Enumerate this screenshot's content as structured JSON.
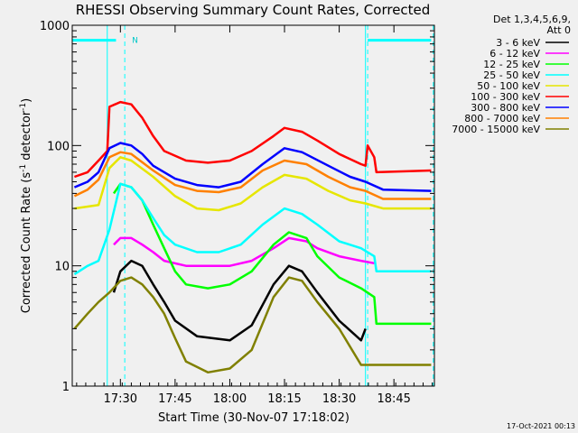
{
  "chart_data": {
    "type": "line",
    "title": "RHESSI Observing Summary Count Rates, Corrected",
    "xlabel": "Start Time (30-Nov-07 17:18:02)",
    "ylabel_main": "Corrected Count Rate (s",
    "ylabel_sup1": "-1",
    "ylabel_mid": " detector",
    "ylabel_sup2": "-1",
    "ylabel_end": ")",
    "yscale": "log",
    "ylim": [
      1,
      1000
    ],
    "xlim": [
      17.28,
      18.935
    ],
    "x_ticks": [
      {
        "x": 17.5,
        "label": "17:30"
      },
      {
        "x": 17.75,
        "label": "17:45"
      },
      {
        "x": 18.0,
        "label": "18:00"
      },
      {
        "x": 18.25,
        "label": "18:15"
      },
      {
        "x": 18.5,
        "label": "18:30"
      },
      {
        "x": 18.75,
        "label": "18:45"
      }
    ],
    "y_ticks": [
      {
        "y": 1,
        "label": "1"
      },
      {
        "y": 10,
        "label": "10"
      },
      {
        "y": 100,
        "label": "100"
      },
      {
        "y": 1000,
        "label": "1000"
      }
    ],
    "legend_header": [
      "Det 1,3,4,5,6,9,",
      "Att 0"
    ],
    "legend_position": "top-right",
    "footer_date": "17-Oct-2021 00:13",
    "annotations": [
      {
        "label": "N",
        "x": 17.52
      }
    ],
    "vertical_lines": [
      {
        "x": 17.28,
        "style": "solid",
        "color": "#00ffff"
      },
      {
        "x": 17.44,
        "style": "solid",
        "color": "#00ffff"
      },
      {
        "x": 17.52,
        "style": "dashed",
        "color": "#00ffff"
      },
      {
        "x": 18.62,
        "style": "solid",
        "color": "#00ffff"
      },
      {
        "x": 18.63,
        "style": "dashed",
        "color": "#00ffff"
      },
      {
        "x": 18.93,
        "style": "dashed",
        "color": "#00ffff"
      }
    ],
    "night_bars": [
      {
        "x0": 17.28,
        "x1": 17.48,
        "y": 750
      },
      {
        "x0": 18.63,
        "x1": 18.92,
        "y": 750
      }
    ],
    "series": [
      {
        "name": "3 - 6 keV",
        "color": "#000000",
        "points": [
          [
            17.47,
            6
          ],
          [
            17.5,
            9
          ],
          [
            17.55,
            11
          ],
          [
            17.6,
            10
          ],
          [
            17.65,
            7
          ],
          [
            17.7,
            5
          ],
          [
            17.75,
            3.5
          ],
          [
            17.85,
            2.6
          ],
          [
            18.0,
            2.4
          ],
          [
            18.1,
            3.2
          ],
          [
            18.2,
            7
          ],
          [
            18.27,
            10
          ],
          [
            18.33,
            9
          ],
          [
            18.4,
            6
          ],
          [
            18.5,
            3.5
          ],
          [
            18.6,
            2.4
          ],
          [
            18.62,
            3
          ]
        ]
      },
      {
        "name": "6 - 12 keV",
        "color": "#ff00ff",
        "points": [
          [
            17.47,
            15
          ],
          [
            17.5,
            17
          ],
          [
            17.55,
            17
          ],
          [
            17.6,
            15
          ],
          [
            17.65,
            13
          ],
          [
            17.7,
            11
          ],
          [
            17.8,
            10
          ],
          [
            17.9,
            10
          ],
          [
            18.0,
            10
          ],
          [
            18.1,
            11
          ],
          [
            18.2,
            14
          ],
          [
            18.27,
            17
          ],
          [
            18.35,
            16
          ],
          [
            18.4,
            14
          ],
          [
            18.5,
            12
          ],
          [
            18.6,
            11
          ],
          [
            18.66,
            10.5
          ]
        ]
      },
      {
        "name": "12 - 25 keV",
        "color": "#00ff00",
        "points": [
          [
            17.47,
            40
          ],
          [
            17.5,
            48
          ],
          [
            17.55,
            45
          ],
          [
            17.6,
            35
          ],
          [
            17.65,
            22
          ],
          [
            17.7,
            14
          ],
          [
            17.75,
            9
          ],
          [
            17.8,
            7
          ],
          [
            17.9,
            6.5
          ],
          [
            18.0,
            7
          ],
          [
            18.1,
            9
          ],
          [
            18.2,
            15
          ],
          [
            18.27,
            19
          ],
          [
            18.35,
            17
          ],
          [
            18.4,
            12
          ],
          [
            18.5,
            8
          ],
          [
            18.6,
            6.5
          ],
          [
            18.66,
            5.5
          ],
          [
            18.67,
            3.3
          ],
          [
            18.92,
            3.3
          ]
        ]
      },
      {
        "name": "25 - 50 keV",
        "color": "#00ffff",
        "points": [
          [
            17.29,
            8.5
          ],
          [
            17.35,
            10
          ],
          [
            17.4,
            11
          ],
          [
            17.45,
            20
          ],
          [
            17.5,
            48
          ],
          [
            17.55,
            45
          ],
          [
            17.6,
            35
          ],
          [
            17.65,
            25
          ],
          [
            17.7,
            18
          ],
          [
            17.75,
            15
          ],
          [
            17.85,
            13
          ],
          [
            17.95,
            13
          ],
          [
            18.05,
            15
          ],
          [
            18.15,
            22
          ],
          [
            18.25,
            30
          ],
          [
            18.33,
            27
          ],
          [
            18.4,
            22
          ],
          [
            18.5,
            16
          ],
          [
            18.6,
            14
          ],
          [
            18.66,
            12
          ],
          [
            18.67,
            9
          ],
          [
            18.92,
            9
          ]
        ]
      },
      {
        "name": "50 - 100 keV",
        "color": "#e6e600",
        "points": [
          [
            17.29,
            30
          ],
          [
            17.4,
            32
          ],
          [
            17.45,
            65
          ],
          [
            17.5,
            80
          ],
          [
            17.55,
            75
          ],
          [
            17.65,
            55
          ],
          [
            17.75,
            38
          ],
          [
            17.85,
            30
          ],
          [
            17.95,
            29
          ],
          [
            18.05,
            33
          ],
          [
            18.15,
            45
          ],
          [
            18.25,
            57
          ],
          [
            18.35,
            53
          ],
          [
            18.45,
            42
          ],
          [
            18.55,
            35
          ],
          [
            18.62,
            33
          ],
          [
            18.7,
            30
          ],
          [
            18.92,
            30
          ]
        ]
      },
      {
        "name": "100 - 300 keV",
        "color": "#ff0000",
        "points": [
          [
            17.29,
            55
          ],
          [
            17.35,
            60
          ],
          [
            17.4,
            75
          ],
          [
            17.44,
            90
          ],
          [
            17.45,
            210
          ],
          [
            17.5,
            230
          ],
          [
            17.55,
            220
          ],
          [
            17.6,
            170
          ],
          [
            17.65,
            120
          ],
          [
            17.7,
            90
          ],
          [
            17.8,
            75
          ],
          [
            17.9,
            72
          ],
          [
            18.0,
            75
          ],
          [
            18.1,
            90
          ],
          [
            18.2,
            120
          ],
          [
            18.25,
            140
          ],
          [
            18.33,
            130
          ],
          [
            18.4,
            110
          ],
          [
            18.5,
            85
          ],
          [
            18.6,
            70
          ],
          [
            18.62,
            68
          ],
          [
            18.63,
            100
          ],
          [
            18.66,
            80
          ],
          [
            18.67,
            60
          ],
          [
            18.92,
            62
          ]
        ]
      },
      {
        "name": "300 - 800 keV",
        "color": "#0000ff",
        "points": [
          [
            17.29,
            45
          ],
          [
            17.35,
            50
          ],
          [
            17.4,
            60
          ],
          [
            17.45,
            95
          ],
          [
            17.5,
            105
          ],
          [
            17.55,
            100
          ],
          [
            17.6,
            85
          ],
          [
            17.65,
            68
          ],
          [
            17.75,
            53
          ],
          [
            17.85,
            47
          ],
          [
            17.95,
            45
          ],
          [
            18.05,
            50
          ],
          [
            18.15,
            70
          ],
          [
            18.25,
            95
          ],
          [
            18.33,
            88
          ],
          [
            18.45,
            68
          ],
          [
            18.55,
            55
          ],
          [
            18.62,
            50
          ],
          [
            18.7,
            43
          ],
          [
            18.92,
            42
          ]
        ]
      },
      {
        "name": "800 - 7000 keV",
        "color": "#ff8000",
        "points": [
          [
            17.29,
            38
          ],
          [
            17.35,
            43
          ],
          [
            17.4,
            52
          ],
          [
            17.45,
            80
          ],
          [
            17.5,
            88
          ],
          [
            17.55,
            85
          ],
          [
            17.65,
            62
          ],
          [
            17.75,
            47
          ],
          [
            17.85,
            42
          ],
          [
            17.95,
            41
          ],
          [
            18.05,
            45
          ],
          [
            18.15,
            62
          ],
          [
            18.25,
            75
          ],
          [
            18.35,
            70
          ],
          [
            18.45,
            55
          ],
          [
            18.55,
            45
          ],
          [
            18.62,
            42
          ],
          [
            18.7,
            36
          ],
          [
            18.92,
            36
          ]
        ]
      },
      {
        "name": "7000 - 15000 keV",
        "color": "#808000",
        "points": [
          [
            17.29,
            3
          ],
          [
            17.35,
            4
          ],
          [
            17.4,
            5
          ],
          [
            17.45,
            6
          ],
          [
            17.5,
            7.5
          ],
          [
            17.55,
            8
          ],
          [
            17.6,
            7
          ],
          [
            17.65,
            5.5
          ],
          [
            17.7,
            4
          ],
          [
            17.75,
            2.5
          ],
          [
            17.8,
            1.6
          ],
          [
            17.9,
            1.3
          ],
          [
            18.0,
            1.4
          ],
          [
            18.1,
            2
          ],
          [
            18.2,
            5.5
          ],
          [
            18.27,
            8
          ],
          [
            18.33,
            7.5
          ],
          [
            18.4,
            5
          ],
          [
            18.5,
            3
          ],
          [
            18.6,
            1.5
          ],
          [
            18.92,
            1.5
          ]
        ]
      }
    ]
  }
}
